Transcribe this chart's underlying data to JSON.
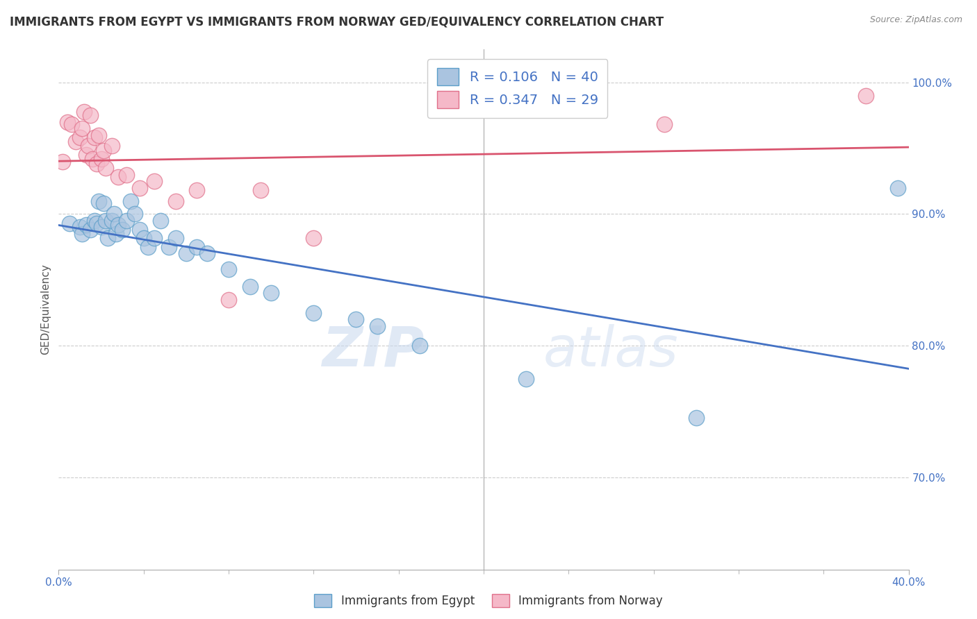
{
  "title": "IMMIGRANTS FROM EGYPT VS IMMIGRANTS FROM NORWAY GED/EQUIVALENCY CORRELATION CHART",
  "source": "Source: ZipAtlas.com",
  "xlabel_egypt": "Immigrants from Egypt",
  "xlabel_norway": "Immigrants from Norway",
  "ylabel": "GED/Equivalency",
  "xlim": [
    0.0,
    0.4
  ],
  "ylim": [
    0.63,
    1.025
  ],
  "xtick_left": 0.0,
  "xtick_right": 0.4,
  "xtick_left_label": "0.0%",
  "xtick_right_label": "40.0%",
  "yticks": [
    0.7,
    0.8,
    0.9,
    1.0
  ],
  "ytick_labels": [
    "70.0%",
    "80.0%",
    "90.0%",
    "100.0%"
  ],
  "egypt_color": "#aac4e0",
  "egypt_edge": "#5b9ec9",
  "norway_color": "#f5b8c8",
  "norway_edge": "#e0708a",
  "line_egypt_color": "#4472c4",
  "line_norway_color": "#d9546e",
  "R_egypt": 0.106,
  "N_egypt": 40,
  "R_norway": 0.347,
  "N_norway": 29,
  "watermark_zip": "ZIP",
  "watermark_atlas": "atlas",
  "egypt_x": [
    0.005,
    0.01,
    0.011,
    0.013,
    0.015,
    0.017,
    0.018,
    0.019,
    0.02,
    0.021,
    0.022,
    0.023,
    0.025,
    0.026,
    0.027,
    0.028,
    0.03,
    0.032,
    0.034,
    0.036,
    0.038,
    0.04,
    0.042,
    0.045,
    0.048,
    0.052,
    0.055,
    0.06,
    0.065,
    0.07,
    0.08,
    0.09,
    0.1,
    0.12,
    0.14,
    0.15,
    0.17,
    0.22,
    0.3,
    0.395
  ],
  "egypt_y": [
    0.893,
    0.89,
    0.885,
    0.892,
    0.888,
    0.895,
    0.893,
    0.91,
    0.89,
    0.908,
    0.895,
    0.882,
    0.895,
    0.9,
    0.885,
    0.892,
    0.888,
    0.895,
    0.91,
    0.9,
    0.888,
    0.882,
    0.875,
    0.882,
    0.895,
    0.875,
    0.882,
    0.87,
    0.875,
    0.87,
    0.858,
    0.845,
    0.84,
    0.825,
    0.82,
    0.815,
    0.8,
    0.775,
    0.745,
    0.92
  ],
  "norway_x": [
    0.002,
    0.004,
    0.006,
    0.008,
    0.01,
    0.011,
    0.012,
    0.013,
    0.014,
    0.015,
    0.016,
    0.017,
    0.018,
    0.019,
    0.02,
    0.021,
    0.022,
    0.025,
    0.028,
    0.032,
    0.038,
    0.045,
    0.055,
    0.065,
    0.08,
    0.095,
    0.12,
    0.285,
    0.38
  ],
  "norway_y": [
    0.94,
    0.97,
    0.968,
    0.955,
    0.958,
    0.965,
    0.978,
    0.945,
    0.952,
    0.975,
    0.942,
    0.958,
    0.938,
    0.96,
    0.942,
    0.948,
    0.935,
    0.952,
    0.928,
    0.93,
    0.92,
    0.925,
    0.91,
    0.918,
    0.835,
    0.918,
    0.882,
    0.968,
    0.99
  ],
  "dashed_line_color": "#cccccc",
  "tick_color": "#4472c4",
  "title_color": "#333333",
  "source_color": "#888888",
  "xtick_minor_positions": [
    0.04,
    0.08,
    0.12,
    0.16,
    0.2,
    0.24,
    0.28,
    0.32,
    0.36
  ],
  "center_line_x": 0.2
}
